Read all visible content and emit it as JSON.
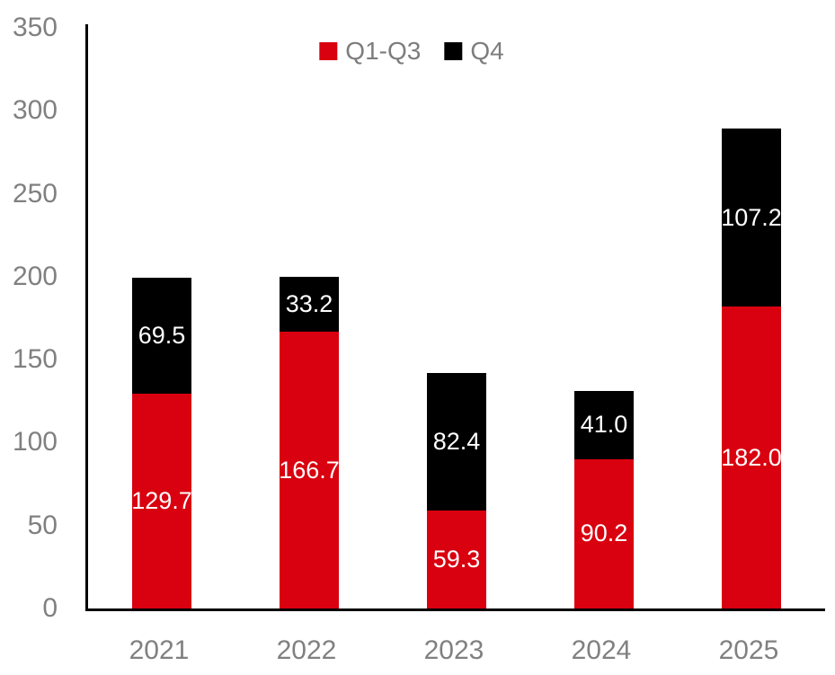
{
  "chart_data": {
    "type": "bar",
    "stacked": true,
    "title": "",
    "categories": [
      "2021",
      "2022",
      "2023",
      "2024",
      "2025"
    ],
    "series": [
      {
        "name": "Q1-Q3",
        "color": "#D9000F",
        "values": [
          129.7,
          166.7,
          59.3,
          90.2,
          182.0
        ]
      },
      {
        "name": "Q4",
        "color": "#000000",
        "values": [
          69.5,
          33.2,
          82.4,
          41.0,
          107.2
        ]
      }
    ],
    "totals": [
      199.2,
      199.9,
      141.7,
      131.2,
      289.2
    ],
    "ylim": [
      0,
      350
    ],
    "yticks": [
      0,
      50,
      100,
      150,
      200,
      250,
      300,
      350
    ],
    "xlabel": "",
    "ylabel": "",
    "grid": false,
    "legend_position": "top",
    "data_label_color": "#FFFFFF",
    "data_label_decimals": 1,
    "axis_line_color": "#000000",
    "tick_label_color": "#808080",
    "legend_text_color": "#7D7D7D"
  }
}
